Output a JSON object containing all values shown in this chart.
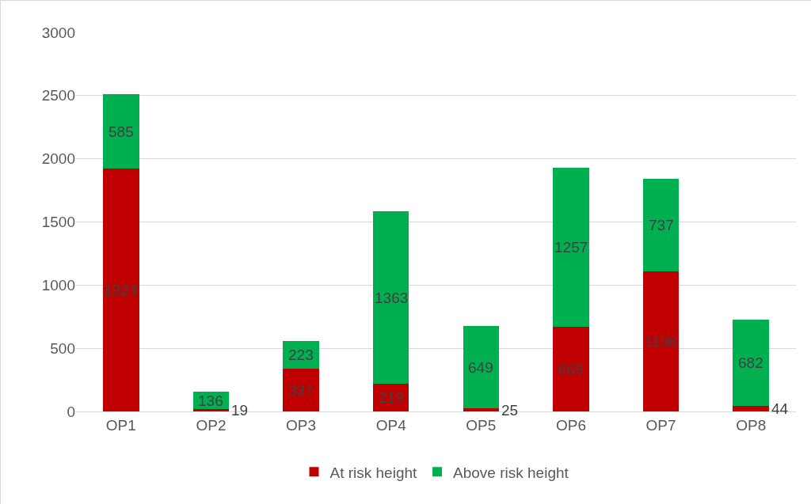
{
  "chart_data": {
    "type": "bar",
    "stacked": true,
    "categories": [
      "OP1",
      "OP2",
      "OP3",
      "OP4",
      "OP5",
      "OP6",
      "OP7",
      "OP8"
    ],
    "series": [
      {
        "name": "At risk height",
        "color": "#c00000",
        "values": [
          1924,
          19,
          337,
          219,
          25,
          669,
          1106,
          44
        ]
      },
      {
        "name": "Above risk height",
        "color": "#00b050",
        "values": [
          585,
          136,
          223,
          1363,
          649,
          1257,
          737,
          682
        ]
      }
    ],
    "ylim": [
      0,
      3000
    ],
    "yticks": [
      0,
      500,
      1000,
      1500,
      2000,
      2500,
      3000
    ],
    "grid": "y",
    "legend": "bottom",
    "data_labels": true
  }
}
